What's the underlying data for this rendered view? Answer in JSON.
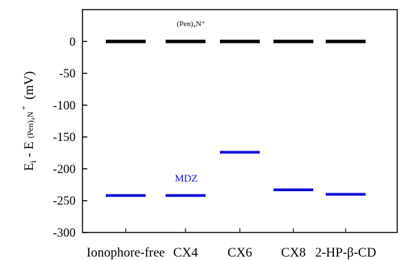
{
  "chart_data": {
    "type": "level-diagram",
    "categories": [
      "Ionophore-free",
      "CX4",
      "CX6",
      "CX8",
      "2-HP-β-CD"
    ],
    "series": [
      {
        "name": "(Pen)₄N⁺",
        "color": "#000000",
        "values": [
          0,
          0,
          0,
          0,
          0
        ]
      },
      {
        "name": "MDZ",
        "color": "#1010d8",
        "values": [
          -242,
          -242,
          -174,
          -233,
          -240
        ]
      }
    ],
    "ylabel": {
      "main": "E",
      "sub_i": "i",
      "mid": " - E ",
      "sub_ion": "(Pen)₄N",
      "sup": "+",
      "unit": " (mV)"
    },
    "ylim": [
      -300,
      50
    ],
    "yticks": [
      0,
      -50,
      -100,
      -150,
      -200,
      -250,
      -300
    ],
    "grid": false,
    "legend": "none"
  }
}
